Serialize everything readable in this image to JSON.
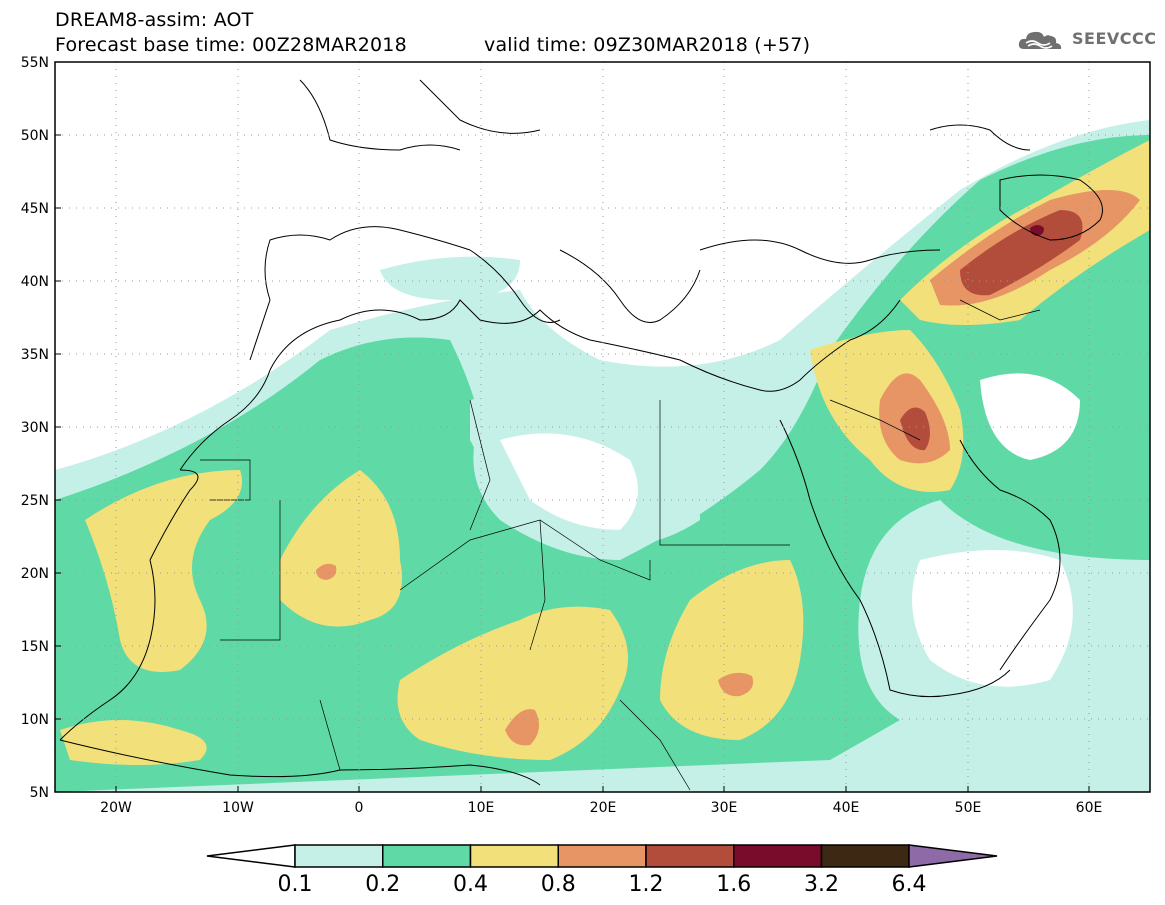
{
  "header": {
    "line1": "DREAM8-assim: AOT",
    "line2": "Forecast base time: 00Z28MAR2018",
    "line3": "valid time: 09Z30MAR2018 (+57)"
  },
  "logo": {
    "text": "SEEVCCC",
    "icon": "cloud-icon"
  },
  "map": {
    "extent": {
      "lon": [
        -25,
        65
      ],
      "lat": [
        5,
        55
      ]
    },
    "lat_labels": [
      "5N",
      "10N",
      "15N",
      "20N",
      "25N",
      "30N",
      "35N",
      "40N",
      "45N",
      "50N",
      "55N"
    ],
    "lon_labels": [
      "20W",
      "10W",
      "0",
      "10E",
      "20E",
      "30E",
      "40E",
      "50E",
      "60E"
    ],
    "grid": "dotted"
  },
  "colorbar": {
    "labels": [
      "0.1",
      "0.2",
      "0.4",
      "0.8",
      "1.2",
      "1.6",
      "3.2",
      "6.4"
    ],
    "colors": [
      "#ffffff",
      "#c4f0e7",
      "#5fd9a6",
      "#f2e07a",
      "#e89566",
      "#b34d3b",
      "#7a0c2b",
      "#3d2813",
      "#8e6aa6"
    ]
  }
}
